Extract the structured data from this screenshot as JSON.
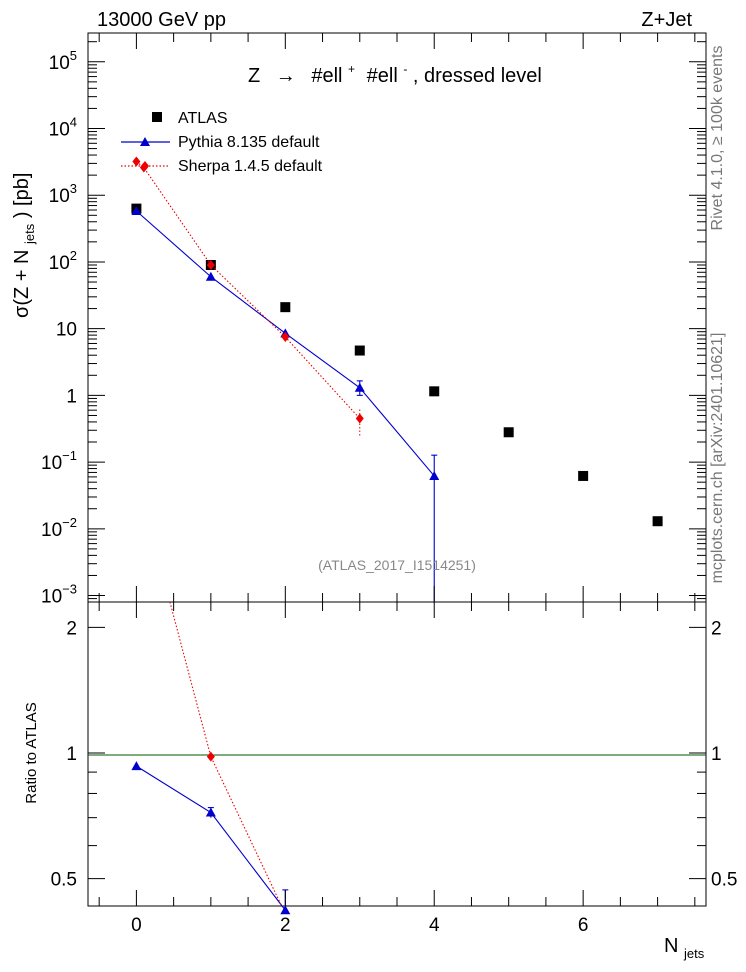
{
  "header": {
    "left": "13000 GeV pp",
    "right": "Z+Jet"
  },
  "side_labels": {
    "rivet": "Rivet 4.1.0, ≥ 100k events",
    "mcplots": "mcplots.cern.ch [arXiv:2401.10621]"
  },
  "colors": {
    "atlas": "#000000",
    "pythia": "#0000cc",
    "sherpa": "#ee0000",
    "ratio_line": "#005500"
  },
  "chart_data": [
    {
      "type": "scatter",
      "panel": "main",
      "title": "Z → #ell⁺ #ell⁻, dressed level",
      "title_parts": {
        "prefix": "Z",
        "arrow": "→",
        "p1": "#ell",
        "s1": "+",
        "p2": "#ell",
        "s2": "-",
        "suffix": ", dressed level"
      },
      "ylabel": "σ(Z + N_jets) [pb]",
      "ylabel_parts": {
        "a": "σ(Z + N",
        "sub": "jets",
        "b": ") [pb]"
      },
      "yscale": "log",
      "ylim": [
        0.0008,
        270000
      ],
      "xlim": [
        -0.65,
        7.65
      ],
      "yticks": [
        {
          "value": 100000,
          "label": "10",
          "exp": "5"
        },
        {
          "value": 10000,
          "label": "10",
          "exp": "4"
        },
        {
          "value": 1000,
          "label": "10",
          "exp": "3"
        },
        {
          "value": 100,
          "label": "10",
          "exp": "2"
        },
        {
          "value": 10,
          "label": "10",
          "exp": ""
        },
        {
          "value": 1,
          "label": "1",
          "exp": ""
        },
        {
          "value": 0.1,
          "label": "10",
          "exp": "−1"
        },
        {
          "value": 0.01,
          "label": "10",
          "exp": "−2"
        },
        {
          "value": 0.001,
          "label": "10",
          "exp": "−3"
        }
      ],
      "annotation": "(ATLAS_2017_I1514251)",
      "legend": [
        {
          "name": "ATLAS",
          "style": "marker-square"
        },
        {
          "name": "Pythia 8.135 default",
          "style": "line-triangle"
        },
        {
          "name": "Sherpa 1.4.5 default",
          "style": "dotted-diamond"
        }
      ],
      "legend_position": "top-left",
      "series": [
        {
          "name": "ATLAS",
          "x": [
            0,
            1,
            2,
            3,
            4,
            5,
            6,
            7
          ],
          "y": [
            630,
            90,
            21,
            4.7,
            1.15,
            0.28,
            0.062,
            0.013
          ],
          "err": [
            0,
            0,
            0,
            0,
            0,
            0,
            0,
            0
          ]
        },
        {
          "name": "Pythia 8.135 default",
          "x": [
            0,
            1,
            2,
            3,
            4
          ],
          "y": [
            580,
            60,
            8.5,
            1.3,
            0.062
          ],
          "err_lo": [
            0,
            0,
            0,
            0.3,
            0.062
          ],
          "err_hi": [
            0,
            0,
            0,
            0.35,
            0.065
          ]
        },
        {
          "name": "Sherpa 1.4.5 default",
          "x": [
            0,
            0.1,
            1,
            2,
            3
          ],
          "y": [
            3200,
            2600,
            90,
            7.5,
            0.45
          ],
          "err_lo": [
            0,
            0,
            0,
            0,
            0.2
          ],
          "err_hi": [
            0,
            0,
            0,
            0,
            0.2
          ]
        }
      ]
    },
    {
      "type": "scatter",
      "panel": "ratio",
      "ylabel": "Ratio to ATLAS",
      "xlabel": "N_jets",
      "xlabel_parts": {
        "a": "N",
        "sub": "jets"
      },
      "yscale": "log",
      "ylim": [
        0.43,
        2.3
      ],
      "xlim": [
        -0.65,
        7.65
      ],
      "xticks": [
        {
          "value": 0,
          "label": "0"
        },
        {
          "value": 2,
          "label": "2"
        },
        {
          "value": 4,
          "label": "4"
        },
        {
          "value": 6,
          "label": "6"
        }
      ],
      "yticks": [
        {
          "value": 2,
          "label": "2"
        },
        {
          "value": 1,
          "label": "1"
        },
        {
          "value": 0.5,
          "label": "0.5"
        }
      ],
      "reference": 1,
      "series": [
        {
          "name": "Pythia 8.135 default",
          "x": [
            0,
            1,
            2
          ],
          "y": [
            0.93,
            0.72,
            0.42
          ],
          "err_lo": [
            0,
            0.02,
            0.05
          ],
          "err_hi": [
            0,
            0.02,
            0.05
          ]
        },
        {
          "name": "Sherpa 1.4.5 default",
          "x": [
            0.45,
            1,
            1.95
          ],
          "y": [
            2.3,
            0.98,
            0.43
          ],
          "markers": [
            false,
            true,
            false
          ]
        }
      ]
    }
  ]
}
